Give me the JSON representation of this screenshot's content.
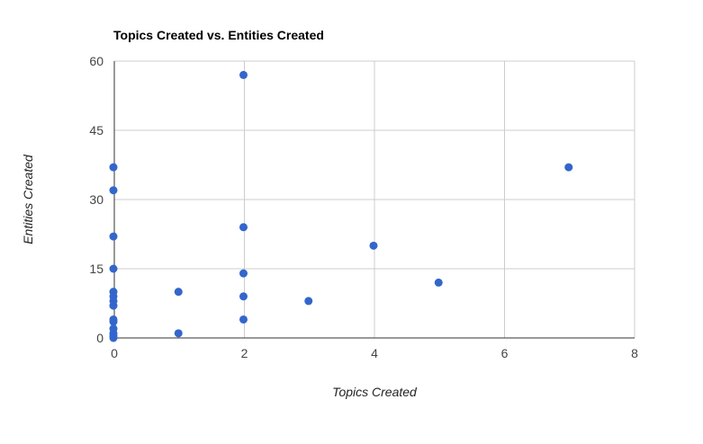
{
  "chart_data": {
    "type": "scatter",
    "title": "Topics Created vs. Entities Created",
    "xlabel": "Topics Created",
    "ylabel": "Entities Created",
    "xlim": [
      0,
      8
    ],
    "ylim": [
      0,
      60
    ],
    "xticks": [
      0,
      2,
      4,
      6,
      8
    ],
    "yticks": [
      0,
      15,
      30,
      45,
      60
    ],
    "grid": true,
    "legend": "none",
    "color": "#3366cc",
    "points": [
      {
        "x": 0,
        "y": 37
      },
      {
        "x": 0,
        "y": 32
      },
      {
        "x": 0,
        "y": 22
      },
      {
        "x": 0,
        "y": 15
      },
      {
        "x": 0,
        "y": 10
      },
      {
        "x": 0,
        "y": 9
      },
      {
        "x": 0,
        "y": 8
      },
      {
        "x": 0,
        "y": 7
      },
      {
        "x": 0,
        "y": 4
      },
      {
        "x": 0,
        "y": 3.5
      },
      {
        "x": 0,
        "y": 2
      },
      {
        "x": 0,
        "y": 1
      },
      {
        "x": 0,
        "y": 0.5
      },
      {
        "x": 0,
        "y": 0
      },
      {
        "x": 1,
        "y": 10
      },
      {
        "x": 1,
        "y": 1
      },
      {
        "x": 2,
        "y": 57
      },
      {
        "x": 2,
        "y": 24
      },
      {
        "x": 2,
        "y": 14
      },
      {
        "x": 2,
        "y": 9
      },
      {
        "x": 2,
        "y": 4
      },
      {
        "x": 3,
        "y": 8
      },
      {
        "x": 4,
        "y": 20
      },
      {
        "x": 5,
        "y": 12
      },
      {
        "x": 7,
        "y": 37
      }
    ]
  }
}
